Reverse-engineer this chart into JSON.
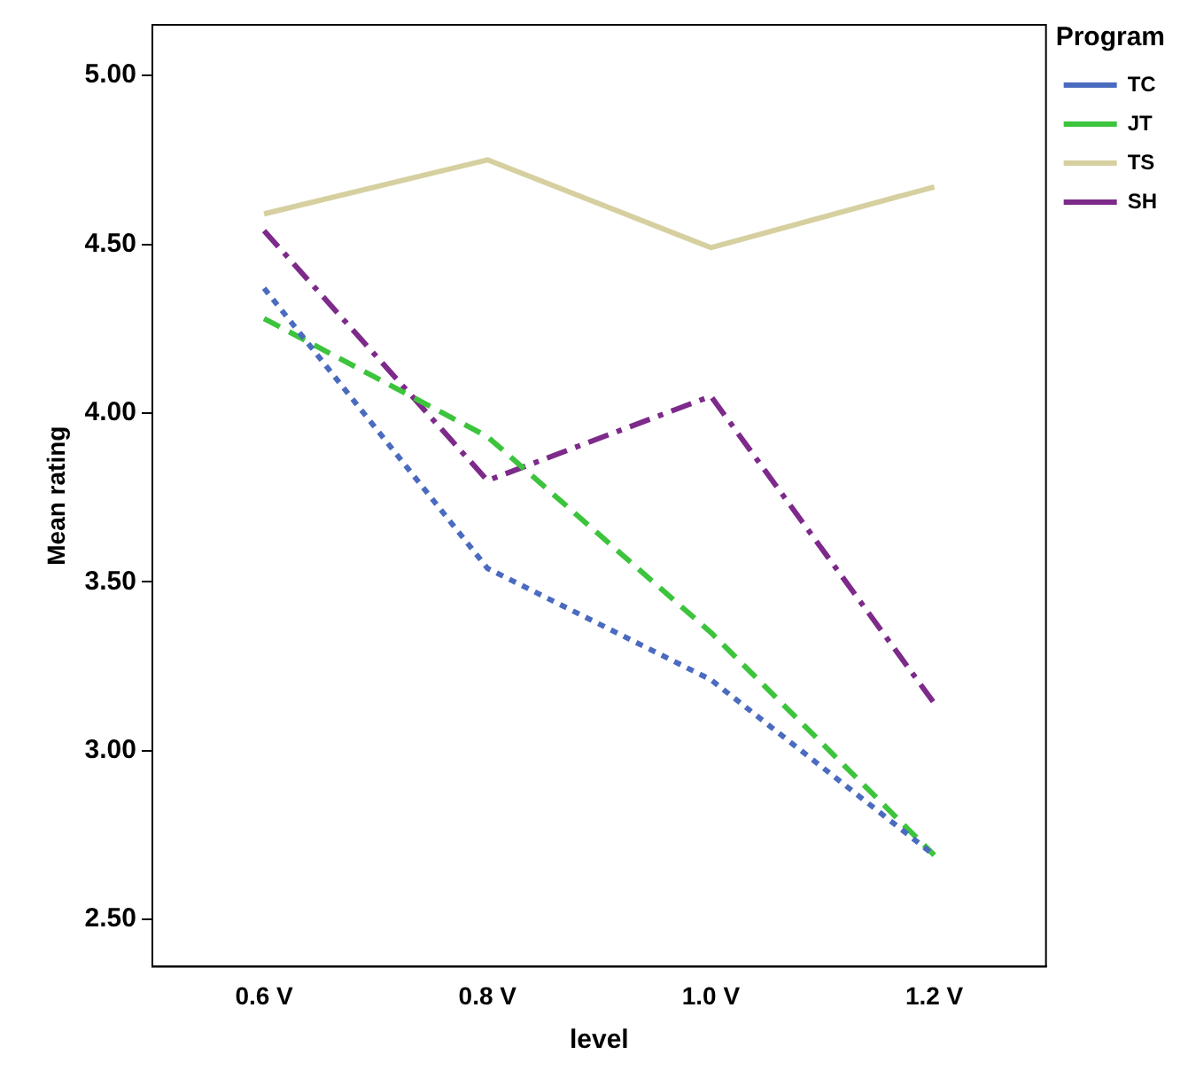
{
  "chart_data": {
    "type": "line",
    "xlabel": "level",
    "ylabel": "Mean rating",
    "legend_title": "Program",
    "legend": "right",
    "grid": false,
    "marker": "none",
    "categories": [
      "0.6 V",
      "0.8 V",
      "1.0 V",
      "1.2 V"
    ],
    "ylim": [
      2.36,
      5.15
    ],
    "yticks": [
      {
        "value": 2.5,
        "label": "2.50"
      },
      {
        "value": 3,
        "label": "3.00"
      },
      {
        "value": 3.5,
        "label": "3.50"
      },
      {
        "value": 4,
        "label": "4.00"
      },
      {
        "value": 4.5,
        "label": "4.50"
      },
      {
        "value": 5,
        "label": "5.00"
      }
    ],
    "series": [
      {
        "name": "TC",
        "color": "#4a6bbf",
        "line_style": "dotted",
        "values": [
          4.37,
          3.54,
          3.21,
          2.69
        ]
      },
      {
        "name": "JT",
        "color": "#3cc43c",
        "line_style": "dashed",
        "values": [
          4.28,
          3.93,
          3.35,
          2.69
        ]
      },
      {
        "name": "TS",
        "color": "#d6d0a0",
        "line_style": "solid",
        "values": [
          4.59,
          4.75,
          4.49,
          4.67
        ]
      },
      {
        "name": "SH",
        "color": "#7d2a8a",
        "line_style": "dashdot",
        "values": [
          4.54,
          3.8,
          4.05,
          3.14
        ]
      }
    ]
  }
}
